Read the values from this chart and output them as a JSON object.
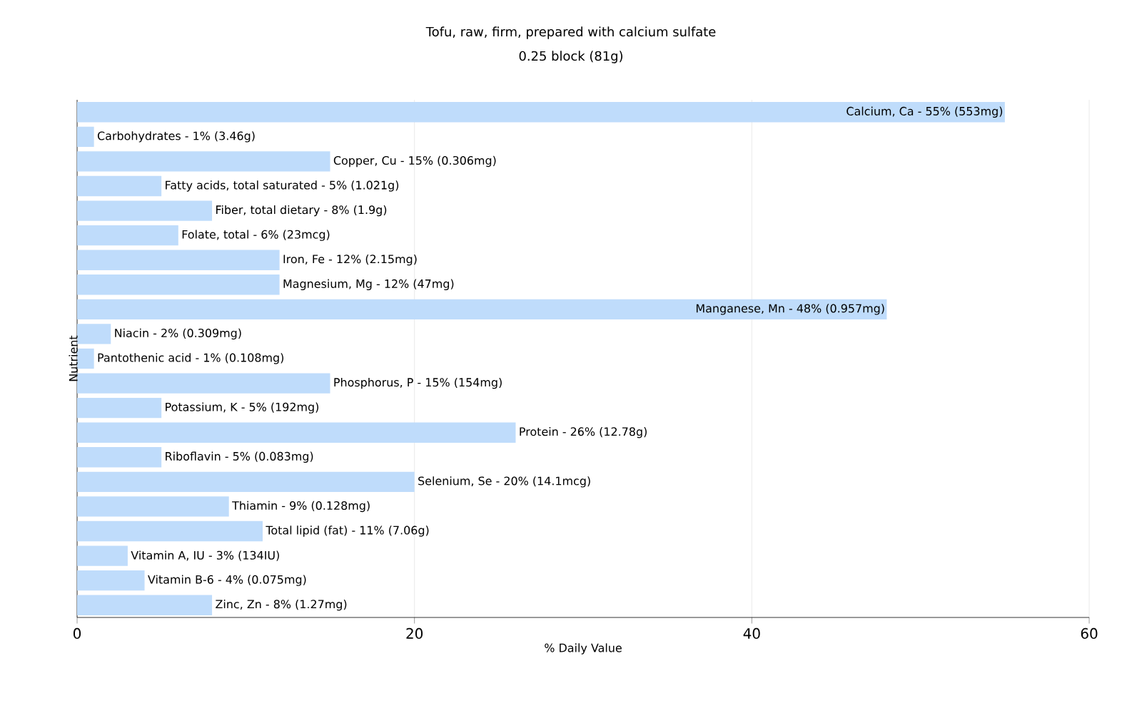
{
  "chart_data": {
    "type": "bar",
    "orientation": "horizontal",
    "title": "Tofu, raw, firm, prepared with calcium sulfate",
    "subtitle": "0.25 block (81g)",
    "xlabel": "% Daily Value",
    "ylabel": "Nutrient",
    "categories": [
      null,
      null,
      null,
      null,
      null,
      null,
      null,
      null,
      null,
      null,
      null,
      null,
      null,
      null,
      null,
      null,
      null,
      null,
      null,
      null,
      null
    ],
    "values": [
      55,
      1,
      15,
      5,
      8,
      6,
      12,
      12,
      48,
      2,
      1,
      15,
      5,
      26,
      5,
      20,
      9,
      11,
      3,
      4,
      8
    ],
    "annotations": [
      {
        "text": "Calcium, Ca - 55% (553mg)",
        "x": 55
      },
      {
        "text": "Carbohydrates - 1% (3.46g)",
        "x": 1
      },
      {
        "text": "Copper, Cu - 15% (0.306mg)",
        "x": 15
      },
      {
        "text": "Fatty acids, total saturated - 5% (1.021g)",
        "x": 5
      },
      {
        "text": "Fiber, total dietary - 8% (1.9g)",
        "x": 8
      },
      {
        "text": "Folate, total - 6% (23mcg)",
        "x": 6
      },
      {
        "text": "Iron, Fe - 12% (2.15mg)",
        "x": 12
      },
      {
        "text": "Magnesium, Mg - 12% (47mg)",
        "x": 12
      },
      {
        "text": "Manganese, Mn - 48% (0.957mg)",
        "x": 48
      },
      {
        "text": "Niacin - 2% (0.309mg)",
        "x": 2
      },
      {
        "text": "Pantothenic acid - 1% (0.108mg)",
        "x": 1
      },
      {
        "text": "Phosphorus, P - 15% (154mg)",
        "x": 15
      },
      {
        "text": "Potassium, K - 5% (192mg)",
        "x": 5
      },
      {
        "text": "Protein - 26% (12.78g)",
        "x": 26
      },
      {
        "text": "Riboflavin - 5% (0.083mg)",
        "x": 5
      },
      {
        "text": "Selenium, Se - 20% (14.1mcg)",
        "x": 20
      },
      {
        "text": "Thiamin - 9% (0.128mg)",
        "x": 9
      },
      {
        "text": "Total lipid (fat) - 11% (7.06g)",
        "x": 11
      },
      {
        "text": "Vitamin A, IU - 3% (134IU)",
        "x": 3
      },
      {
        "text": "Vitamin B-6 - 4% (0.075mg)",
        "x": 4
      },
      {
        "text": "Zinc, Zn - 8% (1.27mg)",
        "x": 8
      }
    ],
    "color": "#bfdcfb",
    "xlim": [
      0,
      60
    ],
    "xticks": [
      0,
      20,
      40,
      60
    ],
    "grid": "x",
    "tick_labels": "x"
  }
}
